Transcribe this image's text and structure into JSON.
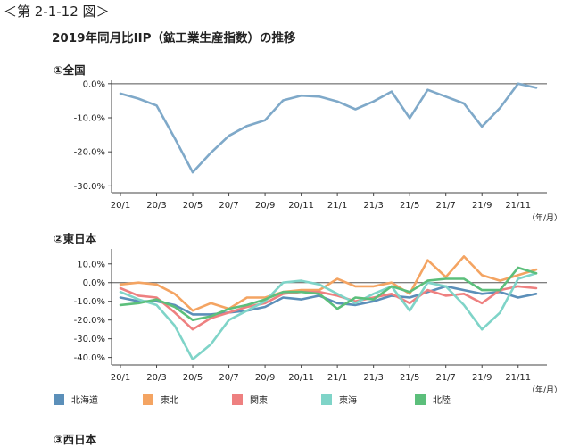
{
  "figure_label": "＜第 2-1-12 図＞",
  "title": "2019年同月比IIP（鉱工業生産指数）の推移",
  "charts": {
    "national_title": "①全国",
    "east_title": "②東日本",
    "west_title": "③西日本",
    "unit_label": "（年/月）"
  },
  "legend": [
    {
      "name": "北海道",
      "color": "#5b8fb9"
    },
    {
      "name": "東北",
      "color": "#f4a462"
    },
    {
      "name": "関東",
      "color": "#ee8080"
    },
    {
      "name": "東海",
      "color": "#7fd4c8"
    },
    {
      "name": "北陸",
      "color": "#5cbf7b"
    }
  ],
  "chart_data": [
    {
      "type": "line",
      "title": "①全国",
      "x": [
        "20/1",
        "20/2",
        "20/3",
        "20/4",
        "20/5",
        "20/6",
        "20/7",
        "20/8",
        "20/9",
        "20/10",
        "20/11",
        "20/12",
        "21/1",
        "21/2",
        "21/3",
        "21/4",
        "21/5",
        "21/6",
        "21/7",
        "21/8",
        "21/9",
        "21/10",
        "21/11",
        "21/12"
      ],
      "x_tick_labels": [
        "20/1",
        "20/3",
        "20/5",
        "20/7",
        "20/9",
        "20/11",
        "21/1",
        "21/3",
        "21/5",
        "21/7",
        "21/9",
        "21/11"
      ],
      "ylim": [
        -32,
        1
      ],
      "y_ticks": [
        0,
        -10,
        -20,
        -30
      ],
      "y_tick_labels": [
        "0.0%",
        "-10.0%",
        "-20.0%",
        "-30.0%"
      ],
      "series": [
        {
          "color": "#7fa9c9",
          "values": [
            -2.9,
            -4.4,
            -6.4,
            -16.0,
            -26.0,
            -20.3,
            -15.3,
            -12.4,
            -10.7,
            -4.9,
            -3.5,
            -3.8,
            -5.2,
            -7.5,
            -5.2,
            -2.3,
            -10.1,
            -1.8,
            -3.8,
            -5.8,
            -12.6,
            -7.1,
            0.0,
            -1.2
          ]
        }
      ]
    },
    {
      "type": "line",
      "title": "②東日本",
      "x": [
        "20/1",
        "20/2",
        "20/3",
        "20/4",
        "20/5",
        "20/6",
        "20/7",
        "20/8",
        "20/9",
        "20/10",
        "20/11",
        "20/12",
        "21/1",
        "21/2",
        "21/3",
        "21/4",
        "21/5",
        "21/6",
        "21/7",
        "21/8",
        "21/9",
        "21/10",
        "21/11",
        "21/12"
      ],
      "x_tick_labels": [
        "20/1",
        "20/3",
        "20/5",
        "20/7",
        "20/9",
        "20/11",
        "21/1",
        "21/3",
        "21/5",
        "21/7",
        "21/9",
        "21/11"
      ],
      "ylim": [
        -44,
        18
      ],
      "y_ticks": [
        10,
        0,
        -10,
        -20,
        -30,
        -40
      ],
      "y_tick_labels": [
        "10.0%",
        "0.0%",
        "-10.0%",
        "-20.0%",
        "-30.0%",
        "-40.0%"
      ],
      "series": [
        {
          "name": "北海道",
          "color": "#5b8fb9",
          "values": [
            -8,
            -10,
            -10,
            -12,
            -17,
            -17,
            -16,
            -15,
            -13,
            -8,
            -9,
            -7,
            -11,
            -12,
            -10,
            -7,
            -8,
            -5,
            -2,
            -4,
            -6,
            -5,
            -8,
            -6
          ]
        },
        {
          "name": "東北",
          "color": "#f4a462",
          "values": [
            -1,
            0,
            -1,
            -6,
            -15,
            -11,
            -14,
            -8,
            -8,
            -5,
            -4,
            -4,
            2,
            -2,
            -2,
            0,
            -6,
            12,
            3,
            14,
            4,
            1,
            4,
            7
          ]
        },
        {
          "name": "関東",
          "color": "#ee8080",
          "values": [
            -3,
            -7,
            -8,
            -16,
            -25,
            -19,
            -16,
            -13,
            -11,
            -6,
            -5,
            -5,
            -7,
            -10,
            -8,
            -6,
            -11,
            -4,
            -7,
            -6,
            -11,
            -4,
            -2,
            -3
          ]
        },
        {
          "name": "東海",
          "color": "#7fd4c8",
          "values": [
            -5,
            -9,
            -12,
            -23,
            -41,
            -33,
            -20,
            -15,
            -10,
            0,
            1,
            -1,
            -6,
            -11,
            -6,
            -2,
            -15,
            0,
            -2,
            -12,
            -25,
            -16,
            2,
            5
          ]
        },
        {
          "name": "北陸",
          "color": "#5cbf7b",
          "values": [
            -12,
            -11,
            -9,
            -13,
            -20,
            -18,
            -14,
            -12,
            -9,
            -5,
            -5,
            -6,
            -14,
            -8,
            -9,
            -2,
            -5,
            1,
            2,
            2,
            -4,
            -4,
            8,
            5
          ]
        }
      ]
    }
  ]
}
